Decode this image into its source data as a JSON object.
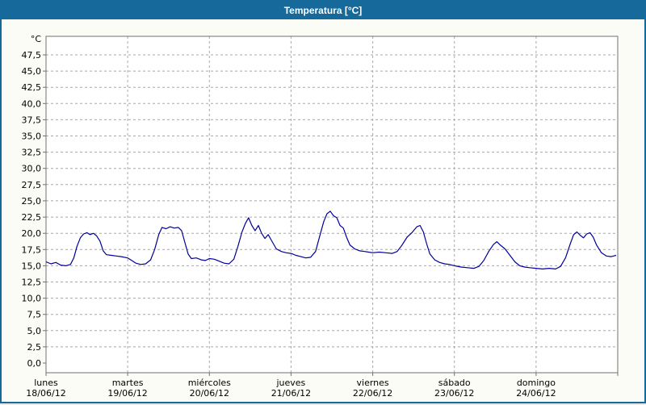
{
  "window": {
    "title": "Temperatura [°C]"
  },
  "colors": {
    "titlebar": "#15699b",
    "window_border": "#15699b",
    "background": "#fcfcf7",
    "plot_background": "#ffffff",
    "plot_border": "#707070",
    "grid": "#a8a8a8",
    "line": "#000099",
    "text": "#000000"
  },
  "chart_data": {
    "type": "line",
    "title": "Temperatura [°C]",
    "ylabel": "°C",
    "xlabel": "",
    "ylim": [
      0,
      50
    ],
    "ytick_step": 2.5,
    "ytick_labels": [
      "0,0",
      "2,5",
      "5,0",
      "7,5",
      "10,0",
      "12,5",
      "15,0",
      "17,5",
      "20,0",
      "22,5",
      "25,0",
      "27,5",
      "30,0",
      "32,5",
      "35,0",
      "37,5",
      "40,0",
      "42,5",
      "45,0",
      "47,5"
    ],
    "grid": "dashed",
    "legend_position": "none",
    "x_axis": {
      "unit": "days",
      "days": [
        {
          "name": "lunes",
          "date": "18/06/12"
        },
        {
          "name": "martes",
          "date": "19/06/12"
        },
        {
          "name": "miércoles",
          "date": "20/06/12"
        },
        {
          "name": "jueves",
          "date": "21/06/12"
        },
        {
          "name": "viernes",
          "date": "22/06/12"
        },
        {
          "name": "sábado",
          "date": "23/06/12"
        },
        {
          "name": "domingo",
          "date": "24/06/12"
        }
      ]
    },
    "series": [
      {
        "name": "Temperatura",
        "color": "#000099",
        "x_unit": "day_fraction_from_18_06_12",
        "points": [
          [
            0.0,
            15.6
          ],
          [
            0.06,
            15.3
          ],
          [
            0.12,
            15.5
          ],
          [
            0.18,
            15.1
          ],
          [
            0.24,
            15.0
          ],
          [
            0.3,
            15.2
          ],
          [
            0.34,
            16.2
          ],
          [
            0.38,
            18.0
          ],
          [
            0.42,
            19.3
          ],
          [
            0.46,
            19.9
          ],
          [
            0.5,
            20.1
          ],
          [
            0.54,
            19.8
          ],
          [
            0.58,
            20.0
          ],
          [
            0.62,
            19.6
          ],
          [
            0.66,
            18.8
          ],
          [
            0.7,
            17.3
          ],
          [
            0.74,
            16.7
          ],
          [
            0.8,
            16.6
          ],
          [
            0.86,
            16.5
          ],
          [
            0.92,
            16.4
          ],
          [
            1.0,
            16.2
          ],
          [
            1.05,
            15.8
          ],
          [
            1.1,
            15.4
          ],
          [
            1.16,
            15.2
          ],
          [
            1.22,
            15.3
          ],
          [
            1.28,
            15.9
          ],
          [
            1.33,
            17.5
          ],
          [
            1.38,
            19.8
          ],
          [
            1.42,
            20.9
          ],
          [
            1.47,
            20.7
          ],
          [
            1.52,
            21.0
          ],
          [
            1.57,
            20.8
          ],
          [
            1.62,
            20.9
          ],
          [
            1.66,
            20.4
          ],
          [
            1.7,
            18.6
          ],
          [
            1.74,
            16.8
          ],
          [
            1.78,
            16.1
          ],
          [
            1.84,
            16.2
          ],
          [
            1.9,
            15.9
          ],
          [
            1.95,
            15.8
          ],
          [
            2.0,
            16.1
          ],
          [
            2.06,
            16.0
          ],
          [
            2.12,
            15.7
          ],
          [
            2.18,
            15.4
          ],
          [
            2.24,
            15.3
          ],
          [
            2.3,
            16.0
          ],
          [
            2.35,
            18.0
          ],
          [
            2.4,
            20.2
          ],
          [
            2.44,
            21.5
          ],
          [
            2.48,
            22.4
          ],
          [
            2.52,
            21.2
          ],
          [
            2.56,
            20.4
          ],
          [
            2.6,
            21.2
          ],
          [
            2.64,
            20.0
          ],
          [
            2.68,
            19.2
          ],
          [
            2.72,
            19.8
          ],
          [
            2.76,
            18.9
          ],
          [
            2.82,
            17.6
          ],
          [
            2.88,
            17.2
          ],
          [
            2.94,
            17.0
          ],
          [
            3.0,
            16.9
          ],
          [
            3.06,
            16.6
          ],
          [
            3.12,
            16.4
          ],
          [
            3.18,
            16.2
          ],
          [
            3.24,
            16.3
          ],
          [
            3.3,
            17.2
          ],
          [
            3.35,
            19.5
          ],
          [
            3.4,
            21.8
          ],
          [
            3.44,
            23.0
          ],
          [
            3.48,
            23.4
          ],
          [
            3.52,
            22.7
          ],
          [
            3.56,
            22.4
          ],
          [
            3.6,
            21.2
          ],
          [
            3.64,
            20.8
          ],
          [
            3.68,
            19.4
          ],
          [
            3.72,
            18.2
          ],
          [
            3.78,
            17.6
          ],
          [
            3.84,
            17.3
          ],
          [
            3.9,
            17.2
          ],
          [
            3.95,
            17.1
          ],
          [
            4.0,
            17.0
          ],
          [
            4.08,
            17.1
          ],
          [
            4.16,
            17.0
          ],
          [
            4.24,
            16.9
          ],
          [
            4.3,
            17.2
          ],
          [
            4.36,
            18.2
          ],
          [
            4.42,
            19.4
          ],
          [
            4.48,
            20.1
          ],
          [
            4.54,
            21.0
          ],
          [
            4.58,
            21.2
          ],
          [
            4.62,
            20.2
          ],
          [
            4.66,
            18.4
          ],
          [
            4.7,
            16.8
          ],
          [
            4.76,
            15.9
          ],
          [
            4.82,
            15.5
          ],
          [
            4.88,
            15.3
          ],
          [
            4.94,
            15.2
          ],
          [
            5.0,
            15.0
          ],
          [
            5.08,
            14.8
          ],
          [
            5.16,
            14.7
          ],
          [
            5.24,
            14.6
          ],
          [
            5.3,
            14.9
          ],
          [
            5.36,
            15.8
          ],
          [
            5.42,
            17.2
          ],
          [
            5.48,
            18.3
          ],
          [
            5.52,
            18.7
          ],
          [
            5.56,
            18.2
          ],
          [
            5.62,
            17.6
          ],
          [
            5.68,
            16.6
          ],
          [
            5.74,
            15.6
          ],
          [
            5.8,
            15.0
          ],
          [
            5.86,
            14.8
          ],
          [
            5.92,
            14.7
          ],
          [
            6.0,
            14.6
          ],
          [
            6.08,
            14.5
          ],
          [
            6.16,
            14.6
          ],
          [
            6.24,
            14.5
          ],
          [
            6.3,
            14.9
          ],
          [
            6.36,
            16.2
          ],
          [
            6.42,
            18.4
          ],
          [
            6.46,
            19.8
          ],
          [
            6.5,
            20.2
          ],
          [
            6.54,
            19.7
          ],
          [
            6.58,
            19.3
          ],
          [
            6.62,
            19.9
          ],
          [
            6.66,
            20.1
          ],
          [
            6.7,
            19.4
          ],
          [
            6.74,
            18.2
          ],
          [
            6.8,
            17.0
          ],
          [
            6.86,
            16.5
          ],
          [
            6.92,
            16.4
          ],
          [
            6.98,
            16.6
          ]
        ]
      }
    ]
  }
}
